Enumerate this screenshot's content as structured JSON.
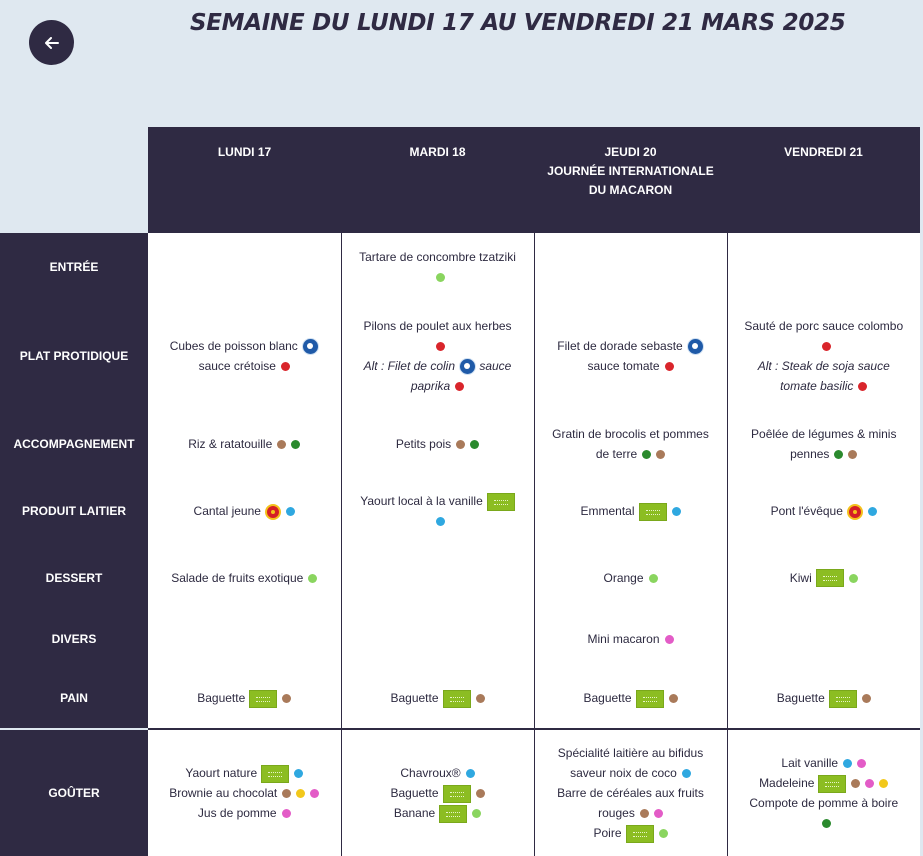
{
  "header": {
    "title": "SEMAINE DU LUNDI 17 AU VENDREDI 21 MARS 2025",
    "back_icon": "arrow-left-icon"
  },
  "days": [
    {
      "lines": [
        "LUNDI 17"
      ]
    },
    {
      "lines": [
        "MARDI 18"
      ]
    },
    {
      "lines": [
        "JEUDI 20",
        "JOURNÉE INTERNATIONALE",
        "DU MACARON"
      ]
    },
    {
      "lines": [
        "VENDREDI 21"
      ]
    }
  ],
  "rows": [
    {
      "label": "ENTRÉE",
      "cells": [
        [],
        [
          {
            "text": "Tartare de concombre tzatziki",
            "dots": [
              "green"
            ]
          }
        ],
        [],
        []
      ]
    },
    {
      "label": "PLAT PROTIDIQUE",
      "cells": [
        [
          {
            "text": "Cubes de poisson blanc",
            "badges": [
              "msc"
            ]
          },
          {
            "text": "sauce crétoise",
            "dots": [
              "red"
            ]
          }
        ],
        [
          {
            "text": "Pilons de poulet aux herbes"
          },
          {
            "text": "",
            "dots": [
              "red"
            ]
          },
          {
            "text": "Alt : Filet de colin",
            "badges": [
              "msc"
            ],
            "suffix": "sauce",
            "italic": true
          },
          {
            "text": "paprika",
            "dots": [
              "red"
            ],
            "italic": true
          }
        ],
        [
          {
            "text": "Filet de dorade sebaste",
            "badges": [
              "msc"
            ]
          },
          {
            "text": "sauce tomate",
            "dots": [
              "red"
            ]
          }
        ],
        [
          {
            "text": "Sauté de porc sauce colombo"
          },
          {
            "text": "",
            "dots": [
              "red"
            ]
          },
          {
            "text": "Alt : Steak de soja sauce",
            "italic": true
          },
          {
            "text": "tomate basilic",
            "dots": [
              "red"
            ],
            "italic": true
          }
        ]
      ]
    },
    {
      "label": "ACCOMPAGNEMENT",
      "cells": [
        [
          {
            "text": "Riz & ratatouille",
            "dots": [
              "brown",
              "dgreen"
            ]
          }
        ],
        [
          {
            "text": "Petits pois",
            "dots": [
              "brown",
              "dgreen"
            ]
          }
        ],
        [
          {
            "text": "Gratin de brocolis et pommes"
          },
          {
            "text": "de terre",
            "dots": [
              "dgreen",
              "brown"
            ]
          }
        ],
        [
          {
            "text": "Poêlée de légumes & minis"
          },
          {
            "text": "pennes",
            "dots": [
              "dgreen",
              "brown"
            ]
          }
        ]
      ]
    },
    {
      "label": "PRODUIT LAITIER",
      "cells": [
        [
          {
            "text": "Cantal jeune",
            "badges": [
              "aop"
            ],
            "dots": [
              "blue"
            ]
          }
        ],
        [
          {
            "text": "Yaourt local à la vanille",
            "badges": [
              "bio"
            ]
          },
          {
            "text": "",
            "dots": [
              "blue"
            ]
          }
        ],
        [
          {
            "text": "Emmental",
            "badges": [
              "bio"
            ],
            "dots": [
              "blue"
            ]
          }
        ],
        [
          {
            "text": "Pont l'évêque",
            "badges": [
              "aop"
            ],
            "dots": [
              "blue"
            ]
          }
        ]
      ]
    },
    {
      "label": "DESSERT",
      "cells": [
        [
          {
            "text": "Salade de fruits exotique",
            "dots": [
              "green"
            ]
          }
        ],
        [],
        [
          {
            "text": "Orange",
            "dots": [
              "green"
            ]
          }
        ],
        [
          {
            "text": "Kiwi",
            "badges": [
              "bio"
            ],
            "dots": [
              "green"
            ]
          }
        ]
      ]
    },
    {
      "label": "DIVERS",
      "cells": [
        [],
        [],
        [
          {
            "text": "Mini macaron",
            "dots": [
              "pink"
            ]
          }
        ],
        []
      ]
    },
    {
      "label": "PAIN",
      "cells": [
        [
          {
            "text": "Baguette",
            "badges": [
              "bio"
            ],
            "dots": [
              "brown"
            ]
          }
        ],
        [
          {
            "text": "Baguette",
            "badges": [
              "bio"
            ],
            "dots": [
              "brown"
            ]
          }
        ],
        [
          {
            "text": "Baguette",
            "badges": [
              "bio"
            ],
            "dots": [
              "brown"
            ]
          }
        ],
        [
          {
            "text": "Baguette",
            "badges": [
              "bio"
            ],
            "dots": [
              "brown"
            ]
          }
        ]
      ]
    },
    {
      "label": "GOÛTER",
      "cells": [
        [
          {
            "text": "Yaourt nature",
            "badges": [
              "bio"
            ],
            "dots": [
              "blue"
            ]
          },
          {
            "text": "Brownie au chocolat",
            "dots": [
              "brown",
              "yellow",
              "pink"
            ]
          },
          {
            "text": "Jus de pomme",
            "dots": [
              "pink"
            ]
          }
        ],
        [
          {
            "text": "Chavroux®",
            "dots": [
              "blue"
            ]
          },
          {
            "text": "Baguette",
            "badges": [
              "bio"
            ],
            "dots": [
              "brown"
            ]
          },
          {
            "text": "Banane",
            "badges": [
              "bio"
            ],
            "dots": [
              "green"
            ]
          }
        ],
        [
          {
            "text": "Spécialité laitière au bifidus"
          },
          {
            "text": "saveur noix de coco",
            "dots": [
              "blue"
            ]
          },
          {
            "text": "Barre de céréales aux fruits"
          },
          {
            "text": "rouges",
            "dots": [
              "brown",
              "pink"
            ]
          },
          {
            "text": "Poire",
            "badges": [
              "bio"
            ],
            "dots": [
              "green"
            ]
          }
        ],
        [
          {
            "text": "Lait vanille",
            "dots": [
              "blue",
              "pink"
            ]
          },
          {
            "text": "Madeleine",
            "badges": [
              "bio"
            ],
            "dots": [
              "brown",
              "pink",
              "yellow"
            ]
          },
          {
            "text": "Compote de pomme à boire"
          },
          {
            "text": "",
            "dots": [
              "dgreen"
            ]
          }
        ]
      ]
    }
  ],
  "colors": {
    "header_bg": "#2f2a43",
    "page_bg": "#dfe8f0",
    "red": "#d9252b",
    "green": "#8ad55f",
    "dgreen": "#2b8a2e",
    "brown": "#a97a5a",
    "blue": "#2fa8e0",
    "pink": "#e35cc7",
    "yellow": "#f2c81b",
    "bio": "#8cbd22"
  }
}
